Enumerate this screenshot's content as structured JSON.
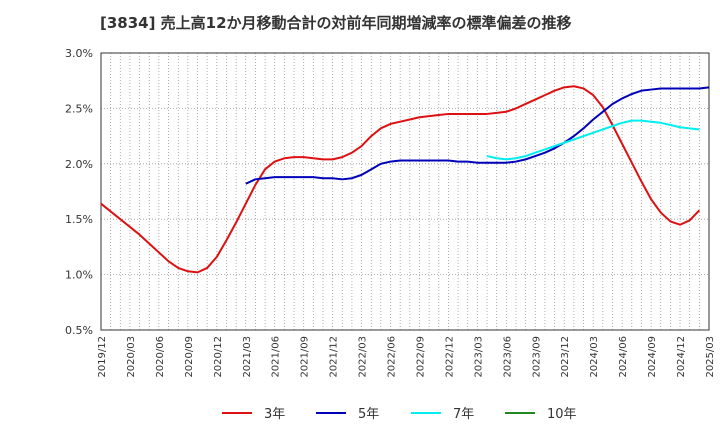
{
  "chart_data": {
    "type": "line",
    "title": "[3834]  売上高12か月移動合計の対前年同期増減率の標準偏差の推移",
    "xlabel": "",
    "ylabel": "",
    "ylim": [
      0.5,
      3.0
    ],
    "yticks": [
      "3.0%",
      "2.5%",
      "2.0%",
      "1.5%",
      "1.0%",
      "0.5%"
    ],
    "ytick_values": [
      3.0,
      2.5,
      2.0,
      1.5,
      1.0,
      0.5
    ],
    "x_start": "2019/12",
    "x_count": 64,
    "xtick_labels": [
      "2019/12",
      "2020/03",
      "2020/06",
      "2020/09",
      "2020/12",
      "2021/03",
      "2021/06",
      "2021/09",
      "2021/12",
      "2022/03",
      "2022/06",
      "2022/09",
      "2022/12",
      "2023/03",
      "2023/06",
      "2023/09",
      "2023/12",
      "2024/03",
      "2024/06",
      "2024/09",
      "2024/12",
      "2025/03"
    ],
    "grid": true,
    "legend_position": "bottom",
    "series": [
      {
        "name": "3年",
        "color": "#dd1111",
        "start_index": 0,
        "values": [
          1.64,
          1.57,
          1.5,
          1.43,
          1.36,
          1.28,
          1.2,
          1.12,
          1.06,
          1.03,
          1.02,
          1.06,
          1.16,
          1.31,
          1.47,
          1.64,
          1.81,
          1.95,
          2.02,
          2.05,
          2.06,
          2.06,
          2.05,
          2.04,
          2.04,
          2.06,
          2.1,
          2.16,
          2.25,
          2.32,
          2.36,
          2.38,
          2.4,
          2.42,
          2.43,
          2.44,
          2.45,
          2.45,
          2.45,
          2.45,
          2.45,
          2.46,
          2.47,
          2.5,
          2.54,
          2.58,
          2.62,
          2.66,
          2.69,
          2.7,
          2.68,
          2.62,
          2.51,
          2.35,
          2.18,
          2.01,
          1.84,
          1.68,
          1.56,
          1.48,
          1.45,
          1.49,
          1.58
        ]
      },
      {
        "name": "5年",
        "color": "#0000bb",
        "start_index": 15,
        "values": [
          1.82,
          1.86,
          1.87,
          1.88,
          1.88,
          1.88,
          1.88,
          1.88,
          1.87,
          1.87,
          1.86,
          1.87,
          1.9,
          1.95,
          2.0,
          2.02,
          2.03,
          2.03,
          2.03,
          2.03,
          2.03,
          2.03,
          2.02,
          2.02,
          2.01,
          2.01,
          2.01,
          2.01,
          2.02,
          2.04,
          2.07,
          2.1,
          2.14,
          2.19,
          2.25,
          2.32,
          2.4,
          2.47,
          2.54,
          2.59,
          2.63,
          2.66,
          2.67,
          2.68,
          2.68,
          2.68,
          2.68,
          2.68,
          2.69
        ]
      },
      {
        "name": "7年",
        "color": "#00eeee",
        "start_index": 40,
        "values": [
          2.07,
          2.05,
          2.04,
          2.05,
          2.07,
          2.1,
          2.13,
          2.16,
          2.19,
          2.22,
          2.25,
          2.28,
          2.31,
          2.34,
          2.37,
          2.39,
          2.39,
          2.38,
          2.37,
          2.35,
          2.33,
          2.32,
          2.31
        ]
      },
      {
        "name": "10年",
        "color": "#228822",
        "start_index": 0,
        "values": []
      }
    ]
  }
}
